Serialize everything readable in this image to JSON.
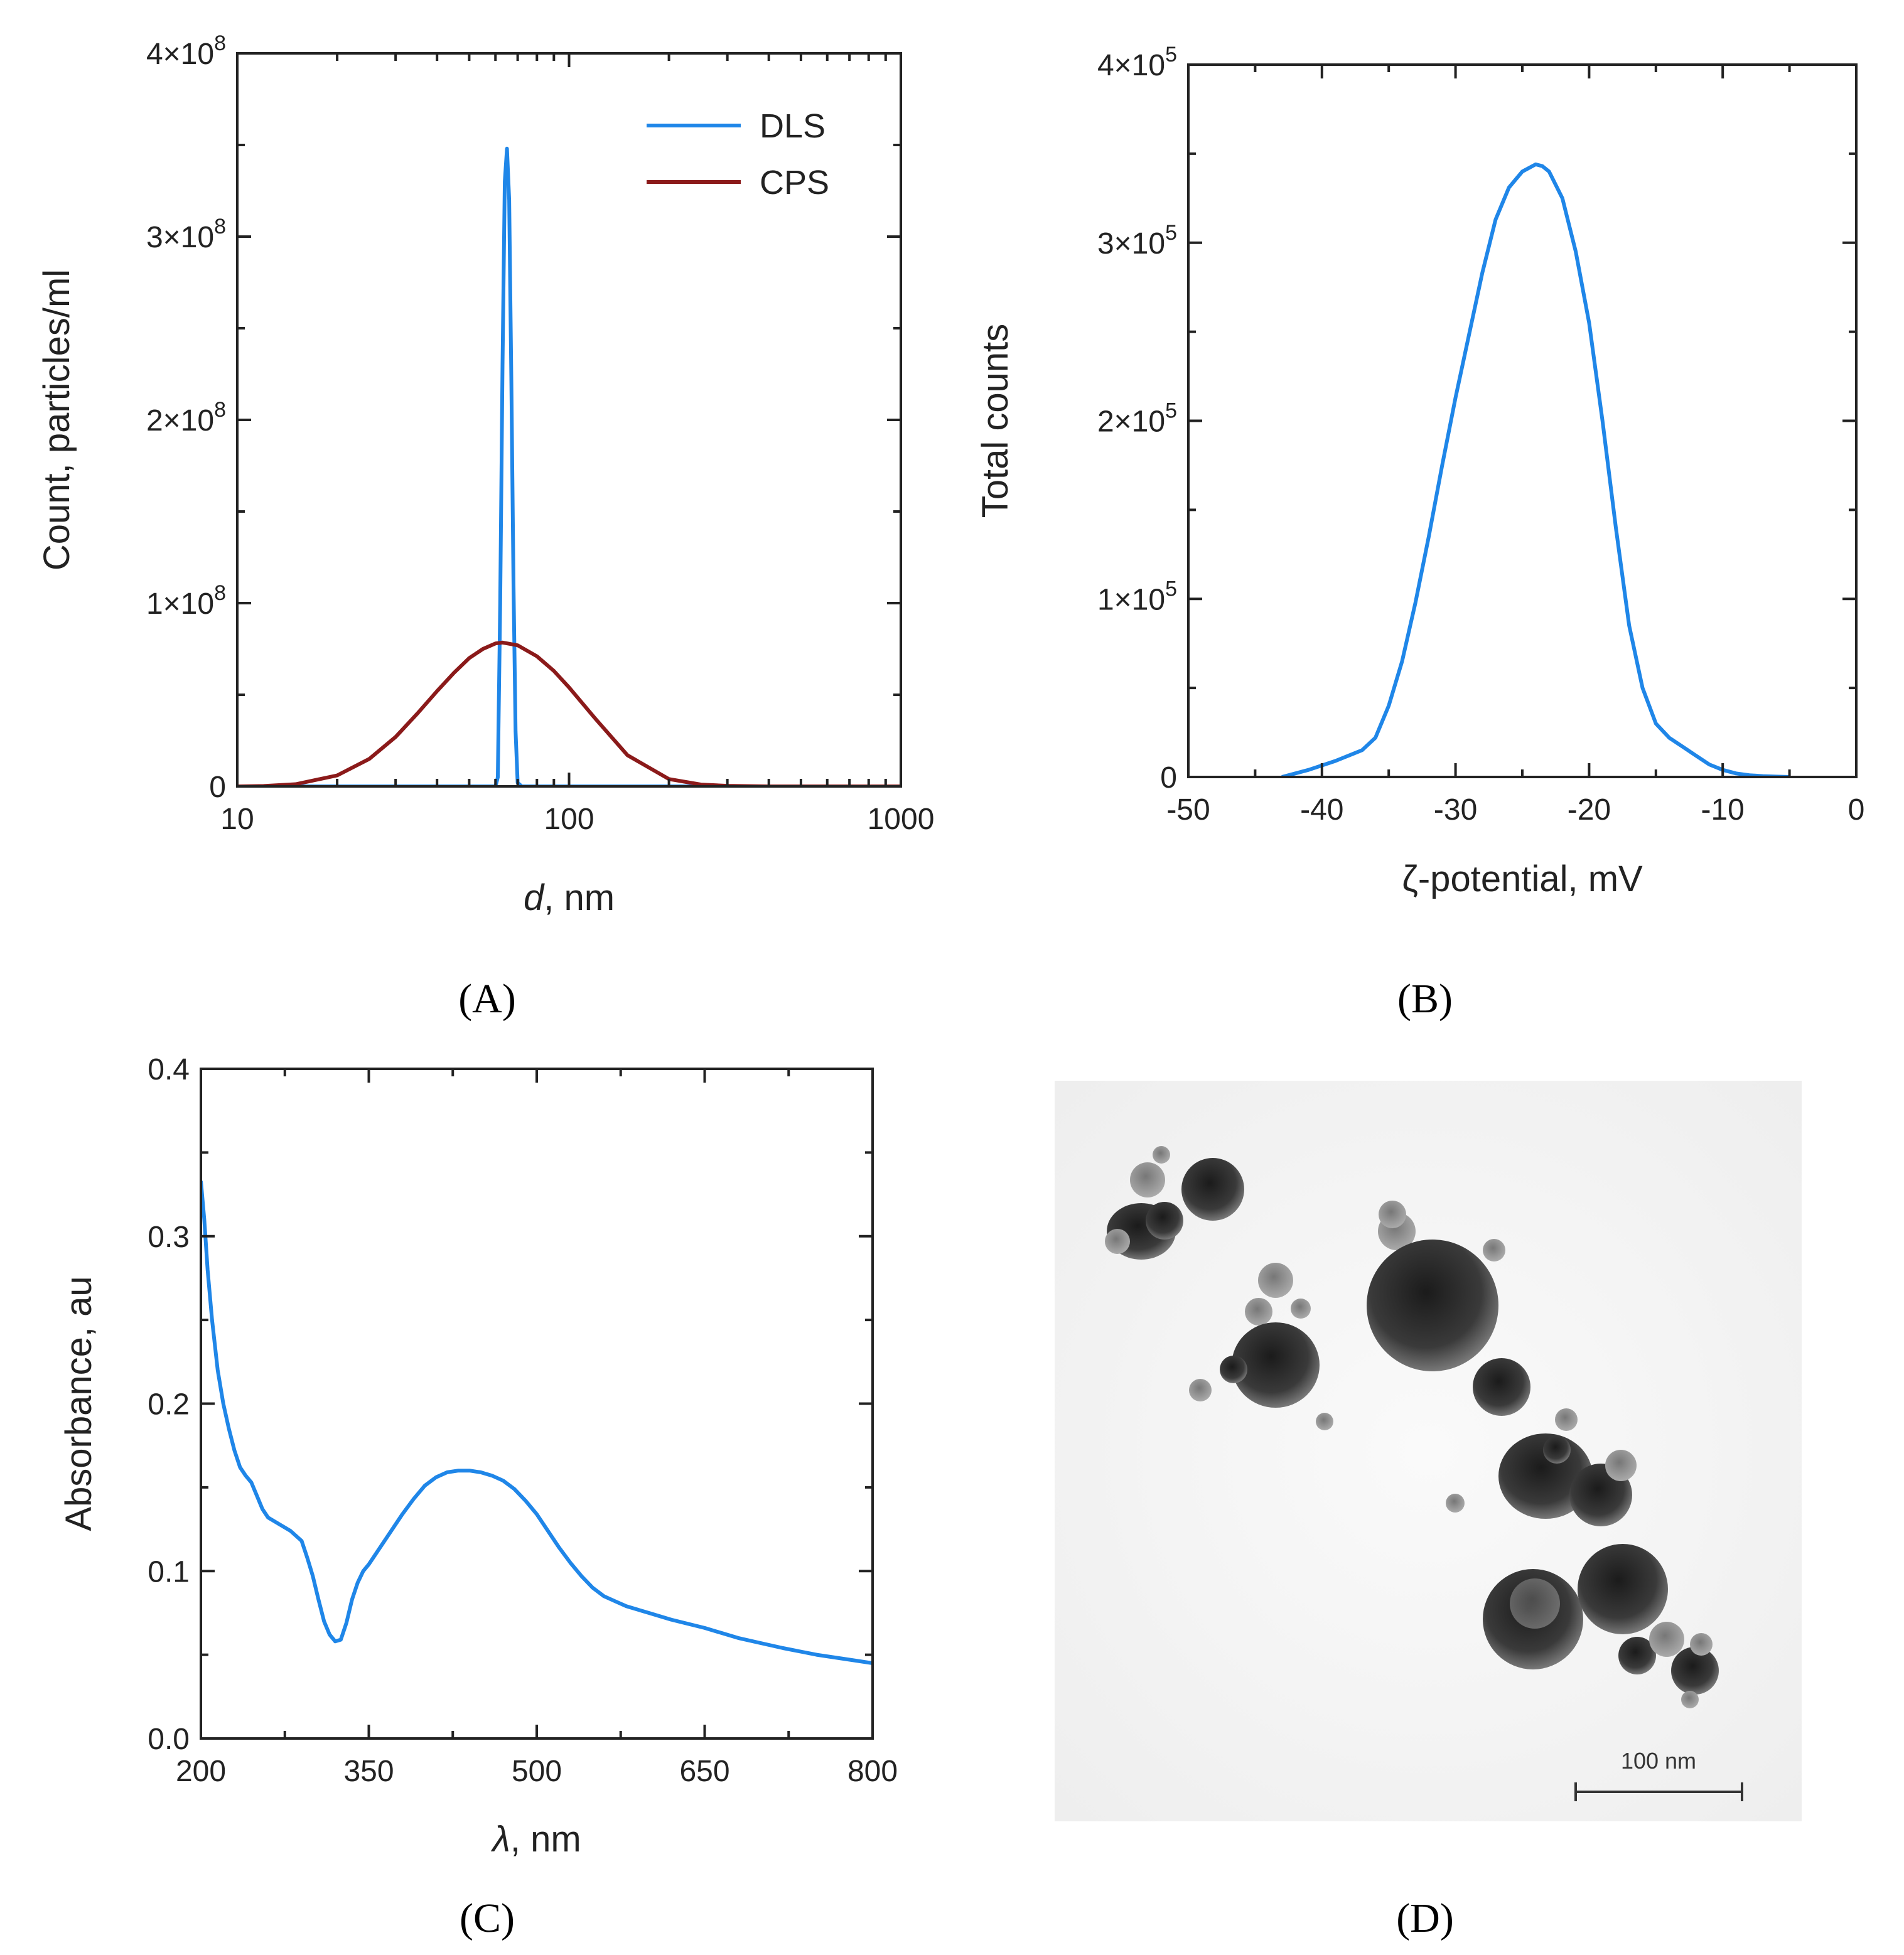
{
  "chart_data": [
    {
      "panel": "(A)",
      "type": "line",
      "xlabel_italic": "d",
      "xlabel_rest": ", nm",
      "ylabel": "Count, particles/ml",
      "x_scale": "log",
      "xlim": [
        10,
        1000
      ],
      "ylim": [
        0,
        400000000
      ],
      "xticks": [
        10,
        100,
        1000
      ],
      "xtick_labels": [
        "10",
        "100",
        "1000"
      ],
      "yticks": [
        0,
        100000000,
        200000000,
        300000000,
        400000000
      ],
      "ytick_labels": [
        {
          "mant": "0",
          "exp": ""
        },
        {
          "mant": "1×10",
          "exp": "8"
        },
        {
          "mant": "2×10",
          "exp": "8"
        },
        {
          "mant": "3×10",
          "exp": "8"
        },
        {
          "mant": "4×10",
          "exp": "8"
        }
      ],
      "legend_position": "top-right",
      "series": [
        {
          "name": "DLS",
          "color": "#1f86e8",
          "x": [
            10,
            40,
            58,
            60,
            61,
            62,
            63,
            64,
            65,
            66,
            67,
            68,
            69,
            70,
            72,
            80,
            200,
            1000
          ],
          "y": [
            0,
            0,
            0,
            0,
            5000000,
            100000000,
            230000000,
            330000000,
            348000000,
            320000000,
            220000000,
            110000000,
            30000000,
            2000000,
            0,
            0,
            0,
            0
          ]
        },
        {
          "name": "CPS",
          "color": "#8b1a1a",
          "x": [
            10,
            12,
            15,
            20,
            25,
            30,
            35,
            40,
            45,
            50,
            55,
            60,
            63,
            70,
            80,
            90,
            100,
            120,
            150,
            200,
            250,
            300,
            400,
            1000
          ],
          "y": [
            0,
            200000,
            1200000,
            6000000,
            15000000,
            27000000,
            40000000,
            52000000,
            62000000,
            70000000,
            75000000,
            78000000,
            78500000,
            77000000,
            71000000,
            63000000,
            54000000,
            37000000,
            17000000,
            4000000,
            1000000,
            300000,
            0,
            0
          ]
        }
      ]
    },
    {
      "panel": "(B)",
      "type": "line",
      "xlabel": "ζ-potential, mV",
      "ylabel": "Total counts",
      "xlim": [
        -50,
        0
      ],
      "ylim": [
        0,
        400000
      ],
      "xticks": [
        -50,
        -40,
        -30,
        -20,
        -10,
        0
      ],
      "xtick_labels": [
        "-50",
        "-40",
        "-30",
        "-20",
        "-10",
        "0"
      ],
      "yticks": [
        0,
        100000,
        200000,
        300000,
        400000
      ],
      "ytick_labels": [
        {
          "mant": "0",
          "exp": ""
        },
        {
          "mant": "1×10",
          "exp": "5"
        },
        {
          "mant": "2×10",
          "exp": "5"
        },
        {
          "mant": "3×10",
          "exp": "5"
        },
        {
          "mant": "4×10",
          "exp": "5"
        }
      ],
      "series": [
        {
          "color": "#1f86e8",
          "x": [
            -43,
            -41,
            -39,
            -37,
            -36,
            -35,
            -34,
            -33,
            -32,
            -31,
            -30,
            -29,
            -28,
            -27,
            -26,
            -25,
            -24,
            -23.5,
            -23,
            -22,
            -21,
            -20,
            -19,
            -18,
            -17,
            -16,
            -15,
            -14,
            -13,
            -12,
            -11,
            -10,
            -9,
            -8,
            -7,
            -6,
            -5
          ],
          "y": [
            0,
            4000,
            9000,
            15000,
            22000,
            40000,
            65000,
            98000,
            135000,
            175000,
            213000,
            248000,
            283000,
            313000,
            331000,
            340000,
            344000,
            343000,
            340000,
            325000,
            295000,
            255000,
            200000,
            140000,
            85000,
            50000,
            30000,
            22000,
            17000,
            12000,
            7000,
            4000,
            2000,
            1000,
            500,
            200,
            0
          ]
        }
      ]
    },
    {
      "panel": "(C)",
      "type": "line",
      "xlabel_italic": "λ",
      "xlabel_rest": ", nm",
      "ylabel": "Absorbance, au",
      "xlim": [
        200,
        800
      ],
      "ylim": [
        0,
        0.4
      ],
      "xticks": [
        200,
        350,
        500,
        650,
        800
      ],
      "xtick_labels": [
        "200",
        "350",
        "500",
        "650",
        "800"
      ],
      "yticks": [
        0,
        0.1,
        0.2,
        0.3,
        0.4
      ],
      "ytick_labels": [
        {
          "mant": "0.0",
          "exp": ""
        },
        {
          "mant": "0.1",
          "exp": ""
        },
        {
          "mant": "0.2",
          "exp": ""
        },
        {
          "mant": "0.3",
          "exp": ""
        },
        {
          "mant": "0.4",
          "exp": ""
        }
      ],
      "series": [
        {
          "color": "#1f86e8",
          "x": [
            200,
            203,
            206,
            210,
            215,
            220,
            225,
            230,
            235,
            240,
            245,
            250,
            255,
            260,
            270,
            280,
            290,
            295,
            300,
            305,
            310,
            315,
            320,
            325,
            330,
            335,
            340,
            345,
            350,
            360,
            370,
            380,
            390,
            400,
            410,
            420,
            430,
            440,
            450,
            460,
            470,
            480,
            490,
            500,
            510,
            520,
            530,
            540,
            550,
            560,
            570,
            580,
            600,
            620,
            650,
            680,
            700,
            720,
            750,
            780,
            800
          ],
          "y": [
            0.333,
            0.31,
            0.28,
            0.25,
            0.22,
            0.2,
            0.185,
            0.172,
            0.162,
            0.157,
            0.153,
            0.145,
            0.137,
            0.132,
            0.128,
            0.124,
            0.118,
            0.108,
            0.097,
            0.083,
            0.07,
            0.062,
            0.058,
            0.059,
            0.069,
            0.083,
            0.093,
            0.1,
            0.104,
            0.114,
            0.124,
            0.134,
            0.143,
            0.151,
            0.156,
            0.159,
            0.16,
            0.16,
            0.159,
            0.157,
            0.154,
            0.149,
            0.142,
            0.134,
            0.124,
            0.114,
            0.105,
            0.097,
            0.09,
            0.085,
            0.082,
            0.079,
            0.075,
            0.071,
            0.066,
            0.06,
            0.057,
            0.054,
            0.05,
            0.047,
            0.045
          ]
        }
      ]
    }
  ],
  "panel_d": {
    "label": "(D)",
    "scale_bar_label": "100 nm"
  }
}
